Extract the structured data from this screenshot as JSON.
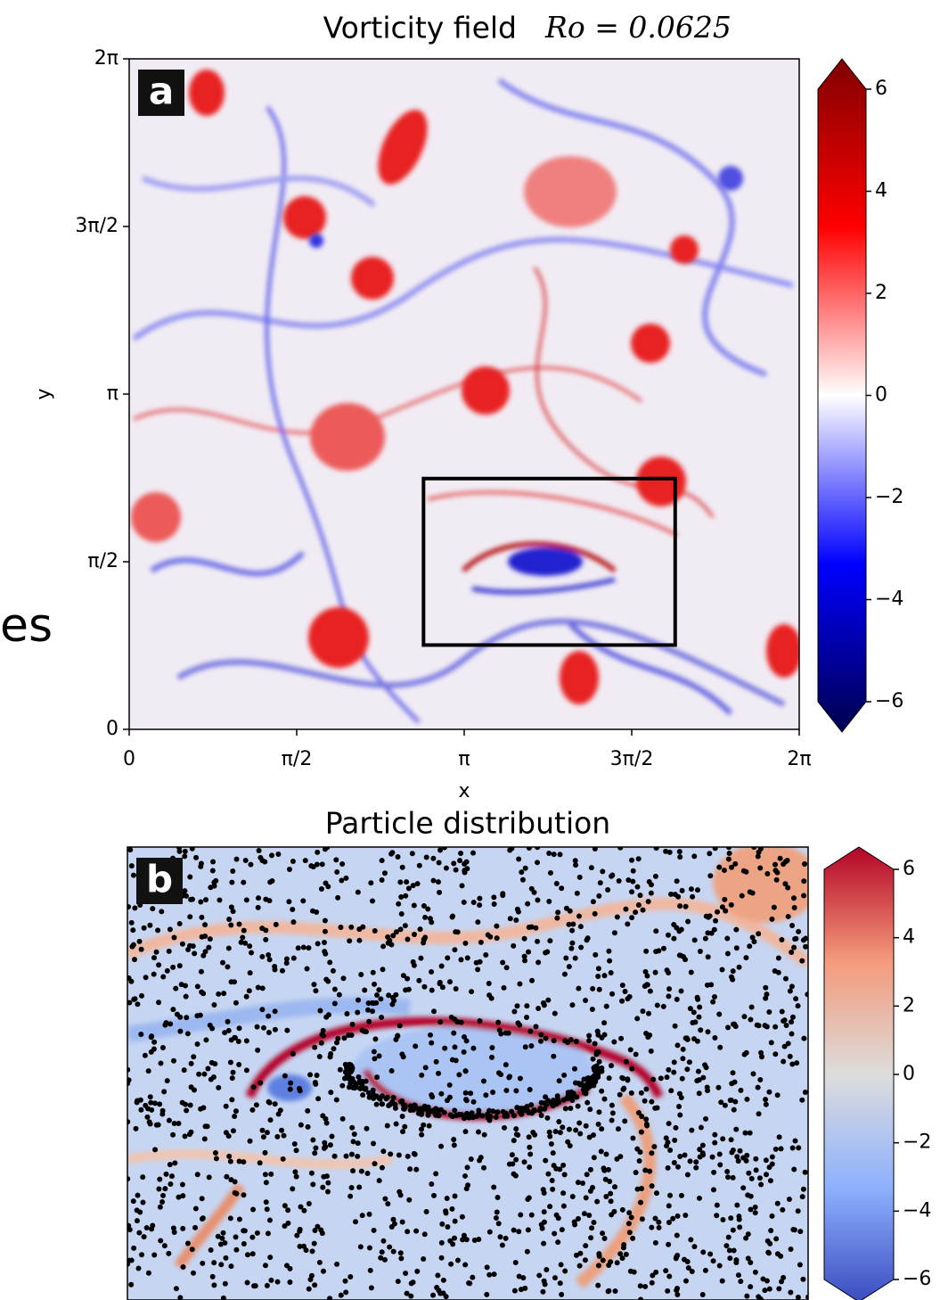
{
  "slide_text": "es",
  "chart_data": [
    {
      "type": "heatmap",
      "title": "Vorticity field",
      "title_math": "Ro = 0.0625",
      "panel_label": "a",
      "xlabel": "x",
      "ylabel": "y",
      "xlim": [
        0,
        6.283185
      ],
      "ylim": [
        0,
        6.283185
      ],
      "xticks": [
        0,
        {
          "value": 1.570796,
          "label": "π/2"
        },
        {
          "value": 3.141593,
          "label": "π"
        },
        {
          "value": 4.712389,
          "label": "3π/2"
        },
        {
          "value": 6.283185,
          "label": "2π"
        }
      ],
      "yticks": [
        0,
        {
          "value": 1.570796,
          "label": "π/2"
        },
        {
          "value": 3.141593,
          "label": "π"
        },
        {
          "value": 4.712389,
          "label": "3π/2"
        },
        {
          "value": 6.283185,
          "label": "2π"
        }
      ],
      "inset_box": {
        "xlim": [
          2.76,
          5.12
        ],
        "ylim": [
          0.79,
          2.35
        ]
      },
      "colorbar": {
        "colormap": "seismic",
        "lim": [
          -6,
          6
        ],
        "ticks": [
          6,
          4,
          2,
          0,
          {
            "value": -2,
            "label": "−2"
          },
          {
            "value": -4,
            "label": "−4"
          },
          {
            "value": -6,
            "label": "−6"
          }
        ]
      }
    },
    {
      "type": "heatmap",
      "title": "Particle distribution",
      "panel_label": "b",
      "colorbar": {
        "colormap": "coolwarm",
        "lim": [
          -6,
          6
        ],
        "ticks": [
          6,
          4,
          2,
          0,
          {
            "value": -2,
            "label": "−2"
          },
          {
            "value": -4,
            "label": "−4"
          },
          {
            "value": -6,
            "label": "−6"
          }
        ]
      }
    }
  ]
}
